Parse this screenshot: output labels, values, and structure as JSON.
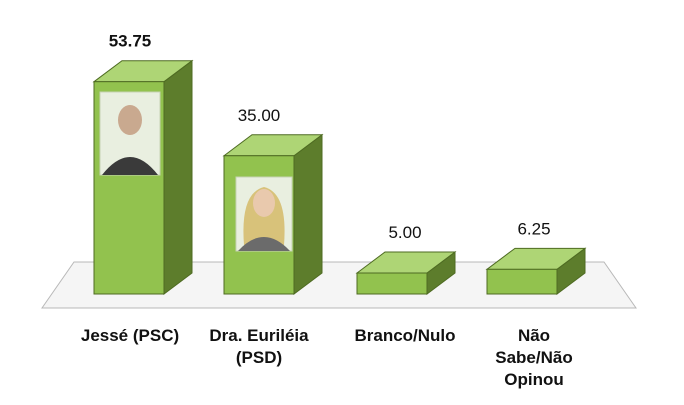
{
  "chart_data": {
    "type": "bar",
    "style": "3d",
    "categories": [
      "Jessé (PSC)",
      "Dra. Euriléia (PSD)",
      "Branco/Nulo",
      "Não Sabe/Não Opinou"
    ],
    "category_lines": [
      [
        "Jessé (PSC)"
      ],
      [
        "Dra. Euriléia",
        "(PSD)"
      ],
      [
        "Branco/Nulo"
      ],
      [
        "Não",
        "Sabe/Não",
        "Opinou"
      ]
    ],
    "values": [
      53.75,
      35.0,
      5.0,
      6.25
    ],
    "value_labels": [
      "53.75",
      "35.00",
      "5.00",
      "6.25"
    ],
    "ylim": [
      0,
      60
    ],
    "grid": false,
    "legend": "none",
    "colors": {
      "front": "#92c24e",
      "top": "#aed575",
      "side": "#5d7d2c",
      "edge": "#4e6b22",
      "floor": "#f5f5f5",
      "floor_edge": "#b8b8b8"
    },
    "photos": [
      "candidate-photo-jesse",
      "candidate-photo-eurileia"
    ]
  }
}
